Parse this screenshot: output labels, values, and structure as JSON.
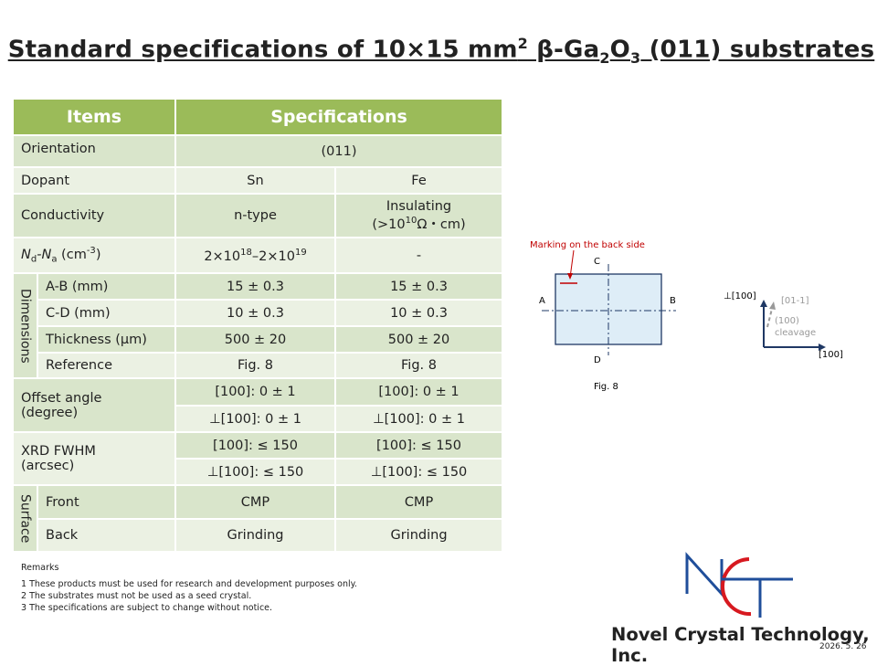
{
  "title": [
    "Standard specifications of 10×15 mm",
    "2",
    " β-Ga",
    "2",
    "O",
    "3",
    " (011) substrates"
  ],
  "table": {
    "header": [
      "Items",
      "Specifications"
    ],
    "orientation": [
      "Orientation",
      "(011)"
    ],
    "dopant": [
      "Dopant",
      "Sn",
      "Fe"
    ],
    "conductivity": [
      "Conductivity",
      "n-type",
      [
        "Insulating",
        "(>10",
        "10",
        "Ω・cm)"
      ]
    ],
    "carrier": [
      [
        "N",
        "d",
        "-N",
        "a",
        " (cm",
        "-3",
        ")"
      ],
      [
        "2×10",
        "18",
        "–2×10",
        "19"
      ],
      "-"
    ],
    "dimensions": {
      "group": "Dimensions",
      "rows": [
        [
          "A-B (mm)",
          "15 ± 0.3",
          "15 ± 0.3"
        ],
        [
          "C-D (mm)",
          "10 ± 0.3",
          "10 ± 0.3"
        ],
        [
          "Thickness (µm)",
          "500 ± 20",
          "500 ± 20"
        ],
        [
          "Reference",
          "Fig. 8",
          "Fig. 8"
        ]
      ]
    },
    "offset": {
      "label": [
        "Offset angle",
        "(degree)"
      ],
      "rows": [
        [
          "[100]: 0 ± 1",
          "[100]: 0 ± 1"
        ],
        [
          "⊥[100]: 0 ± 1",
          "⊥[100]: 0 ± 1"
        ]
      ]
    },
    "xrd": {
      "label": [
        "XRD FWHM",
        "(arcsec)"
      ],
      "rows": [
        [
          "[100]: ≤ 150",
          "[100]: ≤ 150"
        ],
        [
          "⊥[100]: ≤ 150",
          "⊥[100]: ≤ 150"
        ]
      ]
    },
    "surface": {
      "group": "Surface",
      "rows": [
        [
          "Front",
          "CMP",
          "CMP"
        ],
        [
          "Back",
          "Grinding",
          "Grinding"
        ]
      ]
    }
  },
  "remarks": {
    "title": "Remarks",
    "items": [
      "1 These products must be used for research and development purposes only.",
      "2 The substrates must not be used as a seed crystal.",
      "3 The specifications are subject to change without notice."
    ]
  },
  "figure": {
    "marking": "Marking on the back side",
    "c": "C",
    "a": "A",
    "b": "B",
    "d": "D",
    "caption": "Fig. 8",
    "axes": {
      "perp": "⊥[100]",
      "x": "[100]",
      "dir": "[01-1]",
      "plane": "(100)",
      "cleavage": "cleavage"
    }
  },
  "company": "Novel Crystal Technology, Inc.",
  "date": "2026. 5. 26"
}
